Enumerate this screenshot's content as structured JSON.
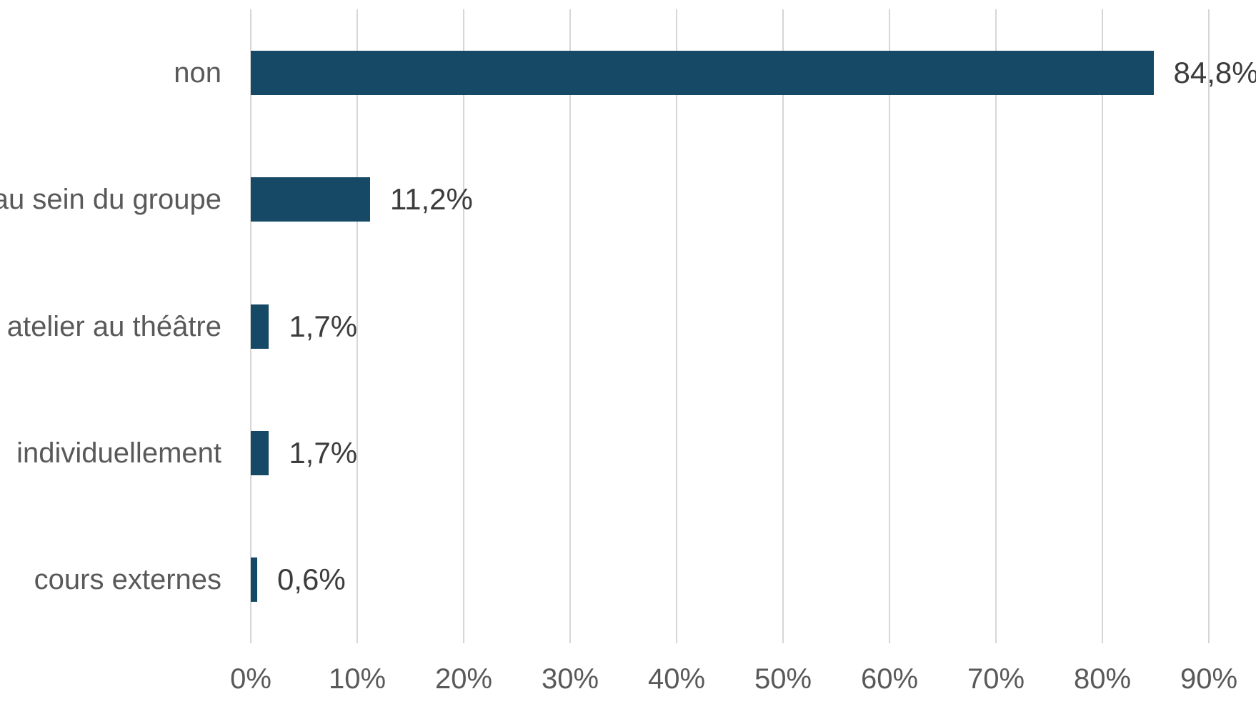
{
  "chart_data": {
    "type": "bar",
    "orientation": "horizontal",
    "title": "",
    "xlabel": "",
    "ylabel": "",
    "categories": [
      "non",
      "au sein du groupe",
      "atelier au théâtre",
      "individuellement",
      "cours externes"
    ],
    "values": [
      84.8,
      11.2,
      1.7,
      1.7,
      0.6
    ],
    "value_labels": [
      "84,8%",
      "11,2%",
      "1,7%",
      "1,7%",
      "0,6%"
    ],
    "xlim": [
      0,
      90
    ],
    "x_ticks": [
      0,
      10,
      20,
      30,
      40,
      50,
      60,
      70,
      80,
      90
    ],
    "x_tick_labels": [
      "0%",
      "10%",
      "20%",
      "30%",
      "40%",
      "50%",
      "60%",
      "70%",
      "80%",
      "90%"
    ],
    "grid": "vertical",
    "legend": "none",
    "colors": {
      "bar": "#154966",
      "gridline": "#D6D6D6",
      "category_text": "#595959",
      "value_text": "#3C3C3C",
      "tick_text": "#595959",
      "background": "#FFFFFF"
    }
  }
}
